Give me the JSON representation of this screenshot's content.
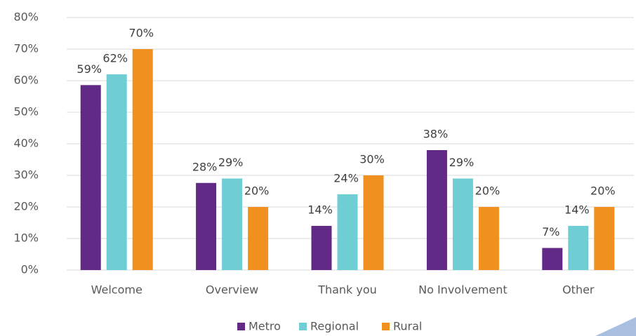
{
  "chart_data": {
    "type": "bar",
    "categories": [
      "Welcome",
      "Overview",
      "Thank you",
      "No Involvement",
      "Other"
    ],
    "series": [
      {
        "name": "Metro",
        "color": "#622a87",
        "values": [
          58.6,
          27.6,
          14,
          38,
          7
        ],
        "value_labels": [
          "59%",
          "28%",
          "14%",
          "38%",
          "7%"
        ]
      },
      {
        "name": "Regional",
        "color": "#6fcdd4",
        "values": [
          62,
          29,
          24,
          29,
          14
        ],
        "value_labels": [
          "62%",
          "29%",
          "24%",
          "29%",
          "14%"
        ]
      },
      {
        "name": "Rural",
        "color": "#f0901f",
        "values": [
          70,
          20,
          30,
          20,
          20
        ],
        "value_labels": [
          "70%",
          "20%",
          "30%",
          "20%",
          "20%"
        ]
      }
    ],
    "ylim": [
      0,
      80
    ],
    "yticks": [
      {
        "value": 0,
        "label": "0%"
      },
      {
        "value": 10,
        "label": "10%"
      },
      {
        "value": 20,
        "label": "20%"
      },
      {
        "value": 30,
        "label": "30%"
      },
      {
        "value": 40,
        "label": "40%"
      },
      {
        "value": 50,
        "label": "50%"
      },
      {
        "value": 60,
        "label": "60%"
      },
      {
        "value": 70,
        "label": "70%"
      },
      {
        "value": 80,
        "label": "80%"
      }
    ],
    "grid": true,
    "legend": "bottom"
  }
}
